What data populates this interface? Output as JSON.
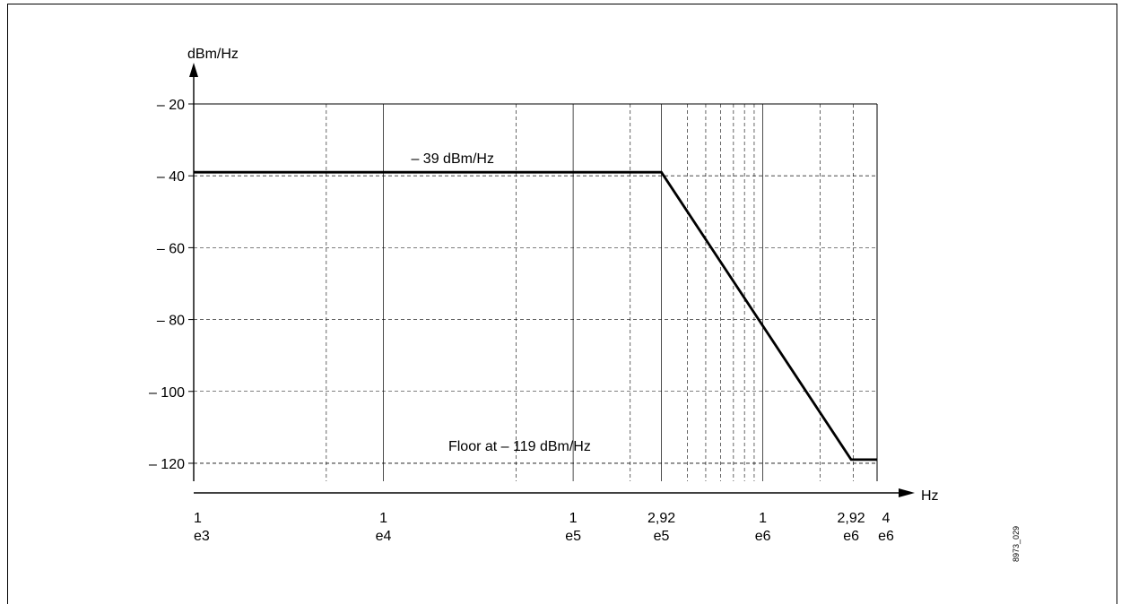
{
  "chart_data": {
    "type": "line",
    "title": "",
    "ylabel": "dBm/Hz",
    "xlabel": "Hz",
    "x_scale": "log",
    "xlim": [
      1000,
      4000000
    ],
    "ylim": [
      -125,
      -20
    ],
    "y_ticks": [
      -20,
      -40,
      -60,
      -80,
      -100,
      -120
    ],
    "y_tick_labels": [
      "– 20",
      "– 40",
      "– 60",
      "– 80",
      "– 100",
      "– 120"
    ],
    "x_ticks": [
      {
        "value": 1000,
        "line1": "1",
        "line2": "e3"
      },
      {
        "value": 10000,
        "line1": "1",
        "line2": "e4"
      },
      {
        "value": 100000,
        "line1": "1",
        "line2": "e5"
      },
      {
        "value": 292000,
        "line1": "2,92",
        "line2": "e5"
      },
      {
        "value": 1000000,
        "line1": "1",
        "line2": "e6"
      },
      {
        "value": 2920000,
        "line1": "2,92",
        "line2": "e6"
      },
      {
        "value": 4000000,
        "line1": "4",
        "line2": "e6"
      }
    ],
    "series": [
      {
        "x": [
          1000,
          292000,
          2920000,
          4000000
        ],
        "y": [
          -39,
          -39,
          -119,
          -119
        ]
      }
    ],
    "reference_lines": [
      -40,
      -120
    ],
    "grid": true,
    "annotations": [
      {
        "text": "– 39 dBm/Hz",
        "x": 14000,
        "y": -39
      },
      {
        "text": "Floor at  – 119 dBm/Hz",
        "x": 22000,
        "y": -119
      }
    ],
    "figure_id": "8973_029"
  }
}
